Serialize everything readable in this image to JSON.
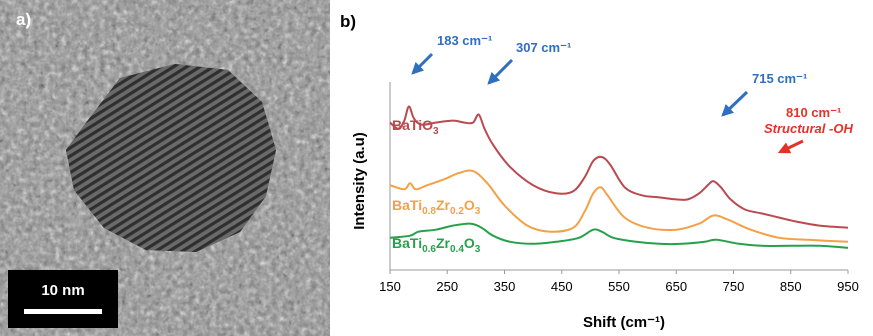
{
  "panel_a": {
    "tag": "a)",
    "scale_bar": "10 nm"
  },
  "panel_b": {
    "tag": "b)"
  },
  "chart_data": {
    "type": "line",
    "xlabel": "Shift (cm⁻¹)",
    "ylabel": "Intensity (a.u)",
    "xlim": [
      150,
      950
    ],
    "xticks": [
      "150",
      "250",
      "350",
      "450",
      "550",
      "650",
      "750",
      "850",
      "950"
    ],
    "grid": false,
    "series": [
      {
        "name": "BaTiO3",
        "label_main": "BaTiO",
        "label_subs": [
          "3"
        ],
        "color": "#b94a4f",
        "x": [
          150,
          165,
          175,
          183,
          192,
          205,
          230,
          260,
          280,
          295,
          305,
          315,
          330,
          360,
          400,
          440,
          470,
          490,
          505,
          520,
          535,
          560,
          590,
          620,
          650,
          670,
          690,
          705,
          715,
          728,
          745,
          770,
          800,
          830,
          860,
          900,
          950
        ],
        "y": [
          0.69,
          0.66,
          0.7,
          0.77,
          0.71,
          0.68,
          0.69,
          0.7,
          0.69,
          0.69,
          0.73,
          0.66,
          0.58,
          0.47,
          0.38,
          0.34,
          0.35,
          0.42,
          0.5,
          0.52,
          0.48,
          0.37,
          0.33,
          0.32,
          0.31,
          0.31,
          0.34,
          0.38,
          0.4,
          0.37,
          0.31,
          0.26,
          0.24,
          0.22,
          0.2,
          0.18,
          0.17
        ]
      },
      {
        "name": "BaTi0.8Zr0.2O3",
        "label_parts": [
          "BaTi",
          "0.8",
          "Zr",
          "0.2",
          "O",
          "3"
        ],
        "color": "#f3a147",
        "x": [
          150,
          175,
          185,
          195,
          215,
          245,
          270,
          295,
          320,
          350,
          390,
          430,
          470,
          490,
          505,
          518,
          530,
          560,
          600,
          650,
          690,
          715,
          740,
          780,
          830,
          880,
          950
        ],
        "y": [
          0.38,
          0.36,
          0.39,
          0.36,
          0.38,
          0.41,
          0.44,
          0.45,
          0.39,
          0.28,
          0.18,
          0.15,
          0.17,
          0.25,
          0.34,
          0.37,
          0.33,
          0.22,
          0.17,
          0.16,
          0.19,
          0.23,
          0.21,
          0.16,
          0.12,
          0.11,
          0.1
        ]
      },
      {
        "name": "BaTi0.6Zr0.4O3",
        "label_parts": [
          "BaTi",
          "0.6",
          "Zr",
          "0.4",
          "O",
          "3"
        ],
        "color": "#27a04b",
        "x": [
          150,
          185,
          200,
          230,
          260,
          290,
          310,
          330,
          360,
          400,
          440,
          480,
          505,
          520,
          540,
          580,
          620,
          660,
          700,
          720,
          760,
          800,
          850,
          900,
          950
        ],
        "y": [
          0.12,
          0.13,
          0.15,
          0.16,
          0.18,
          0.19,
          0.17,
          0.13,
          0.1,
          0.09,
          0.1,
          0.12,
          0.16,
          0.15,
          0.12,
          0.1,
          0.09,
          0.09,
          0.1,
          0.11,
          0.09,
          0.08,
          0.08,
          0.08,
          0.07
        ]
      }
    ],
    "annotations": [
      {
        "text": "183 cm⁻¹",
        "color": "#2e6fbf",
        "x": 183
      },
      {
        "text": "307 cm⁻¹",
        "color": "#2e6fbf",
        "x": 307
      },
      {
        "text": "715 cm⁻¹",
        "color": "#2e6fbf",
        "x": 715
      },
      {
        "text": "810 cm⁻¹",
        "color": "#e53228",
        "x": 810
      },
      {
        "text": "Structural -OH",
        "color": "#e53228",
        "x": 810
      }
    ]
  }
}
